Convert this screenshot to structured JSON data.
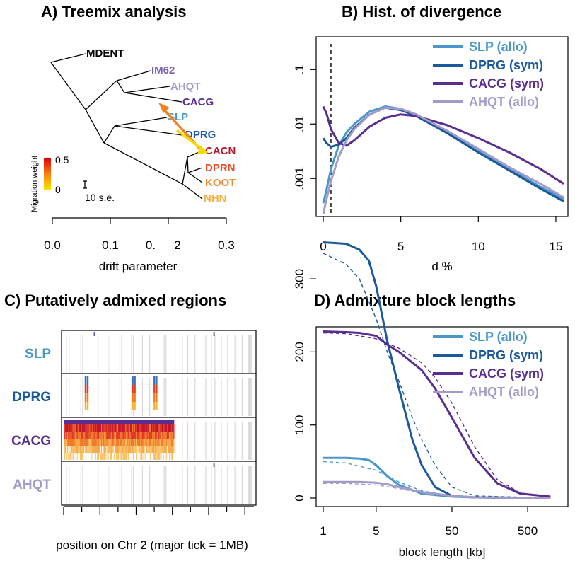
{
  "colors": {
    "SLP": "#4a98c9",
    "DPRG": "#1b5a9a",
    "CACG": "#5a2d91",
    "AHQT": "#a59bc9",
    "MDENT": "#000000",
    "IM62": "#7b5fb2",
    "CACN": "#b5162b",
    "DPRN": "#e8502d",
    "KOOT": "#f28a32",
    "NHN": "#f6b24f",
    "migration_low": "#ffe100",
    "migration_high": "#e8000b"
  },
  "chart_data": [
    {
      "id": "A",
      "type": "tree",
      "title": "A) Treemix analysis",
      "xlabel": "drift parameter",
      "x_ticks": [
        "0.0",
        "0.1",
        "0.",
        "2",
        "0.3"
      ],
      "x_tick_values": [
        0.0,
        0.1,
        0.17,
        0.22,
        0.3
      ],
      "xlim": [
        0.0,
        0.3
      ],
      "leaves": [
        {
          "name": "MDENT",
          "color": "#000000",
          "x": 0.05
        },
        {
          "name": "IM62",
          "color": "#7b5fb2",
          "x": 0.135
        },
        {
          "name": "AHQT",
          "color": "#a59bc9",
          "x": 0.165
        },
        {
          "name": "CACG",
          "color": "#5a2d91",
          "x": 0.185
        },
        {
          "name": "SLP",
          "color": "#4a98c9",
          "x": 0.155
        },
        {
          "name": "DPRG",
          "color": "#1b5a9a",
          "x": 0.175
        },
        {
          "name": "CACN",
          "color": "#b5162b",
          "x": 0.245
        },
        {
          "name": "DPRN",
          "color": "#e8502d",
          "x": 0.245
        },
        {
          "name": "KOOT",
          "color": "#f28a32",
          "x": 0.245
        },
        {
          "name": "NHN",
          "color": "#f6b24f",
          "x": 0.245
        }
      ],
      "migration_edges": [
        {
          "from": "CACN",
          "to": "CACG",
          "weight": 0.35
        },
        {
          "from": "SLP",
          "to": "CACN",
          "weight": 0.05
        }
      ],
      "legend_title": "Migration weight",
      "legend_ticks": [
        "0.5",
        "0"
      ],
      "scale_label": "10 s.e."
    },
    {
      "id": "B",
      "type": "line",
      "title": "B) Hist. of divergence",
      "xlabel": "d %",
      "ylabel": "",
      "y_scale": "log",
      "xlim": [
        0,
        15.5
      ],
      "ylim": [
        0.0002,
        0.4
      ],
      "x_ticks": [
        "0",
        "5",
        "10",
        "15"
      ],
      "y_ticks": [
        ".001",
        ".01",
        ".1"
      ],
      "y_tick_values": [
        0.001,
        0.01,
        0.1
      ],
      "vline": 0.5,
      "legend_position": "top-right",
      "series": [
        {
          "name": "SLP (allo)",
          "color": "#4a98c9",
          "x": [
            0,
            0.2,
            0.5,
            1,
            1.5,
            2,
            3,
            4,
            5,
            6,
            8,
            10,
            12,
            14,
            15.5
          ],
          "y": [
            0.00035,
            0.0006,
            0.0015,
            0.004,
            0.007,
            0.01,
            0.017,
            0.021,
            0.019,
            0.014,
            0.007,
            0.0032,
            0.0015,
            0.0007,
            0.00042
          ]
        },
        {
          "name": "DPRG (sym)",
          "color": "#1b5a9a",
          "x": [
            0,
            0.2,
            0.5,
            1,
            1.5,
            2,
            3,
            4,
            5,
            6,
            8,
            10,
            12,
            14,
            15.5
          ],
          "y": [
            0.0055,
            0.0045,
            0.0038,
            0.0042,
            0.0055,
            0.0085,
            0.015,
            0.02,
            0.018,
            0.014,
            0.0068,
            0.003,
            0.0014,
            0.00065,
            0.00038
          ]
        },
        {
          "name": "CACG (sym)",
          "color": "#5a2d91",
          "x": [
            0,
            0.2,
            0.5,
            1,
            1.5,
            2,
            3,
            4,
            5,
            6,
            8,
            10,
            12,
            14,
            15.5
          ],
          "y": [
            0.021,
            0.016,
            0.008,
            0.0045,
            0.004,
            0.005,
            0.009,
            0.013,
            0.015,
            0.014,
            0.0095,
            0.0055,
            0.003,
            0.0015,
            0.0008
          ]
        },
        {
          "name": "AHQT (allo)",
          "color": "#a59bc9",
          "x": [
            0,
            0.2,
            0.5,
            1,
            1.5,
            2,
            3,
            4,
            5,
            6,
            8,
            10,
            12,
            14,
            15.5
          ],
          "y": [
            0.00022,
            0.0004,
            0.0009,
            0.0025,
            0.005,
            0.008,
            0.015,
            0.02,
            0.019,
            0.015,
            0.0075,
            0.0035,
            0.0016,
            0.0008,
            0.00045
          ]
        }
      ]
    },
    {
      "id": "C",
      "type": "heatmap",
      "title": "C) Putatively admixed regions",
      "xlabel": "position on Chr 2 (major tick = 1MB)",
      "rows": [
        {
          "name": "SLP",
          "color": "#4a98c9"
        },
        {
          "name": "DPRG",
          "color": "#1b5a9a"
        },
        {
          "name": "CACG",
          "color": "#5a2d91"
        },
        {
          "name": "AHQT",
          "color": "#a59bc9"
        }
      ],
      "xlim": [
        0,
        10.5
      ],
      "cacg_block_range": [
        0,
        6.1
      ],
      "dprg_blocks": [
        1.2,
        3.8,
        5.0
      ],
      "slp_marks": [
        1.7,
        8.3
      ],
      "ahqt_marks": [
        8.3
      ],
      "grey_lines": [
        0.15,
        0.3,
        0.95,
        1.05,
        1.9,
        2.45,
        2.55,
        3.1,
        3.2,
        3.75,
        3.85,
        4.35,
        4.75,
        5.55,
        5.65,
        6.15,
        6.55,
        6.85,
        7.25,
        7.75,
        7.85,
        8.15,
        8.35,
        8.7,
        9.05,
        9.45,
        9.85,
        10.2,
        10.25,
        10.3,
        10.35,
        10.4
      ]
    },
    {
      "id": "D",
      "type": "line",
      "title": "D) Admixture block lengths",
      "xlabel": "block length [kb]",
      "ylabel": "",
      "x_scale": "log",
      "xlim": [
        1,
        1000
      ],
      "ylim": [
        0,
        360
      ],
      "x_ticks": [
        "1",
        "5",
        "50",
        "500"
      ],
      "x_tick_values": [
        1,
        5,
        50,
        500
      ],
      "y_ticks": [
        "0",
        "100",
        "200",
        "300"
      ],
      "y_tick_values": [
        0,
        100,
        200,
        300
      ],
      "legend_position": "top-right",
      "series": [
        {
          "name": "SLP (allo)",
          "color": "#4a98c9",
          "x": [
            1,
            2,
            3,
            4,
            5,
            7,
            10,
            20,
            50,
            100,
            1000
          ],
          "y": [
            55,
            55,
            54,
            52,
            45,
            30,
            18,
            6,
            2,
            1,
            0
          ]
        },
        {
          "name": "DPRG (sym)",
          "color": "#1b5a9a",
          "x": [
            1,
            2,
            3,
            4,
            5,
            7,
            10,
            15,
            20,
            30,
            50,
            100,
            1000
          ],
          "y": [
            350,
            348,
            340,
            325,
            290,
            215,
            150,
            80,
            45,
            15,
            3,
            1,
            0
          ]
        },
        {
          "name": "CACG (sym)",
          "color": "#5a2d91",
          "x": [
            1,
            2,
            3,
            5,
            7,
            10,
            20,
            30,
            50,
            100,
            200,
            400,
            1000
          ],
          "y": [
            228,
            227,
            226,
            222,
            210,
            200,
            175,
            150,
            110,
            55,
            20,
            6,
            2
          ]
        },
        {
          "name": "AHQT (allo)",
          "color": "#a59bc9",
          "x": [
            1,
            2,
            3,
            5,
            7,
            10,
            20,
            50,
            100,
            1000
          ],
          "y": [
            22,
            22,
            22,
            21,
            19,
            15,
            8,
            3,
            1,
            0
          ]
        }
      ],
      "fits": [
        {
          "color": "#4a98c9",
          "x": [
            1,
            2,
            5,
            10,
            20,
            50,
            100,
            1000
          ],
          "y": [
            50,
            48,
            38,
            22,
            10,
            3,
            1,
            0
          ]
        },
        {
          "color": "#1b5a9a",
          "x": [
            1,
            2,
            3,
            5,
            7,
            10,
            15,
            20,
            30,
            50,
            100,
            1000
          ],
          "y": [
            335,
            320,
            300,
            245,
            200,
            160,
            110,
            80,
            45,
            15,
            3,
            0
          ]
        },
        {
          "color": "#5a2d91",
          "x": [
            1,
            2,
            5,
            10,
            20,
            30,
            50,
            100,
            200,
            400,
            1000
          ],
          "y": [
            226,
            225,
            218,
            205,
            185,
            165,
            130,
            70,
            25,
            7,
            2
          ]
        },
        {
          "color": "#a59bc9",
          "x": [
            1,
            2,
            5,
            10,
            20,
            50,
            100,
            1000
          ],
          "y": [
            20,
            20,
            18,
            13,
            7,
            2,
            1,
            0
          ]
        }
      ]
    }
  ]
}
